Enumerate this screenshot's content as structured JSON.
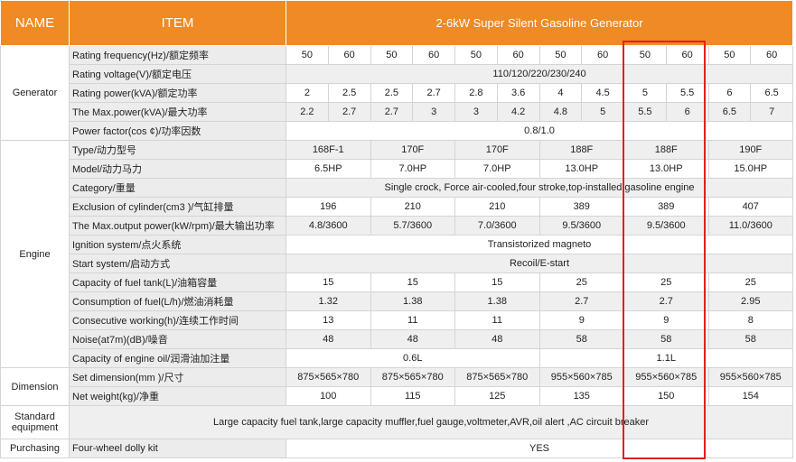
{
  "header": {
    "name": "NAME",
    "item": "ITEM",
    "title": "2-6kW Super Silent Gasoline Generator"
  },
  "groups": [
    {
      "label": "Generator",
      "rows": [
        {
          "item": "Rating frequency(Hz)/额定频率",
          "cells": [
            50,
            60,
            50,
            60,
            50,
            60,
            50,
            60,
            50,
            60,
            50,
            60
          ]
        },
        {
          "item": "Rating voltage(V)/额定电压",
          "cells": [
            "110/120/220/230/240"
          ]
        },
        {
          "item": "Rating power(kVA)/额定功率",
          "cells": [
            2,
            2.5,
            2.5,
            2.7,
            2.8,
            3.6,
            4,
            4.5,
            5,
            5.5,
            6,
            6.5
          ]
        },
        {
          "item": "The Max.power(kVA)/最大功率",
          "cells": [
            2.2,
            2.7,
            2.7,
            3,
            3,
            4.2,
            4.8,
            5,
            5.5,
            6,
            6.5,
            7
          ]
        },
        {
          "item": "Power factor(cos ¢)/功率因数",
          "cells": [
            "0.8/1.0"
          ]
        }
      ]
    },
    {
      "label": "Engine",
      "rows": [
        {
          "item": "Type/动力型号",
          "cells": [
            "168F-1",
            "170F",
            "170F",
            "188F",
            "188F",
            "190F"
          ]
        },
        {
          "item": "Model/动力马力",
          "cells": [
            "6.5HP",
            "7.0HP",
            "7.0HP",
            "13.0HP",
            "13.0HP",
            "15.0HP"
          ]
        },
        {
          "item": "Category/重量",
          "cells": [
            "Single crock, Force air-cooled,four stroke,top-installed gasoline engine"
          ]
        },
        {
          "item": "Exclusion of cylinder(cm3 )/气缸排量",
          "cells": [
            196,
            210,
            210,
            389,
            389,
            407
          ]
        },
        {
          "item": "The Max.output power(kW/rpm)/最大输出功率",
          "cells": [
            "4.8/3600",
            "5.7/3600",
            "7.0/3600",
            "9.5/3600",
            "9.5/3600",
            "11.0/3600"
          ]
        },
        {
          "item": "Ignition system/点火系统",
          "cells": [
            "Transistorized magneto"
          ]
        },
        {
          "item": "Start system/启动方式",
          "cells": [
            "Recoil/E-start"
          ]
        },
        {
          "item": "Capacity of fuel tank(L)/油箱容量",
          "cells": [
            15,
            15,
            15,
            25,
            25,
            25
          ]
        },
        {
          "item": "Consumption of fuel(L/h)/燃油消耗量",
          "cells": [
            1.32,
            1.38,
            1.38,
            2.7,
            2.7,
            2.95
          ]
        },
        {
          "item": "Consecutive working(h)/连续工作时间",
          "cells": [
            13,
            11,
            11,
            9,
            9,
            8
          ]
        },
        {
          "item": "Noise(at7m)(dB)/噪音",
          "cells": [
            48,
            48,
            48,
            58,
            58,
            58
          ]
        },
        {
          "item": "Capacity of engine oil/润滑油加注量",
          "cells": [
            "0.6L",
            "1.1L"
          ]
        }
      ]
    },
    {
      "label": "Dimension",
      "rows": [
        {
          "item": "Set dimension(mm )/尺寸",
          "cells": [
            "875×565×780",
            "875×565×780",
            "875×565×780",
            "955×560×785",
            "955×560×785",
            "955×560×785"
          ]
        },
        {
          "item": "Net weight(kg)/净重",
          "cells": [
            100,
            115,
            125,
            135,
            150,
            154
          ]
        }
      ]
    },
    {
      "label": "Standard equipment",
      "rows": [
        {
          "cells": [
            "Large capacity fuel tank,large capacity muffler,fuel gauge,voltmeter,AVR,oil alert ,AC circuit breaker"
          ]
        }
      ]
    },
    {
      "label": "Purchasing",
      "rows": [
        {
          "item": "Four-wheel dolly kit",
          "cells": [
            "YES"
          ]
        }
      ]
    }
  ]
}
